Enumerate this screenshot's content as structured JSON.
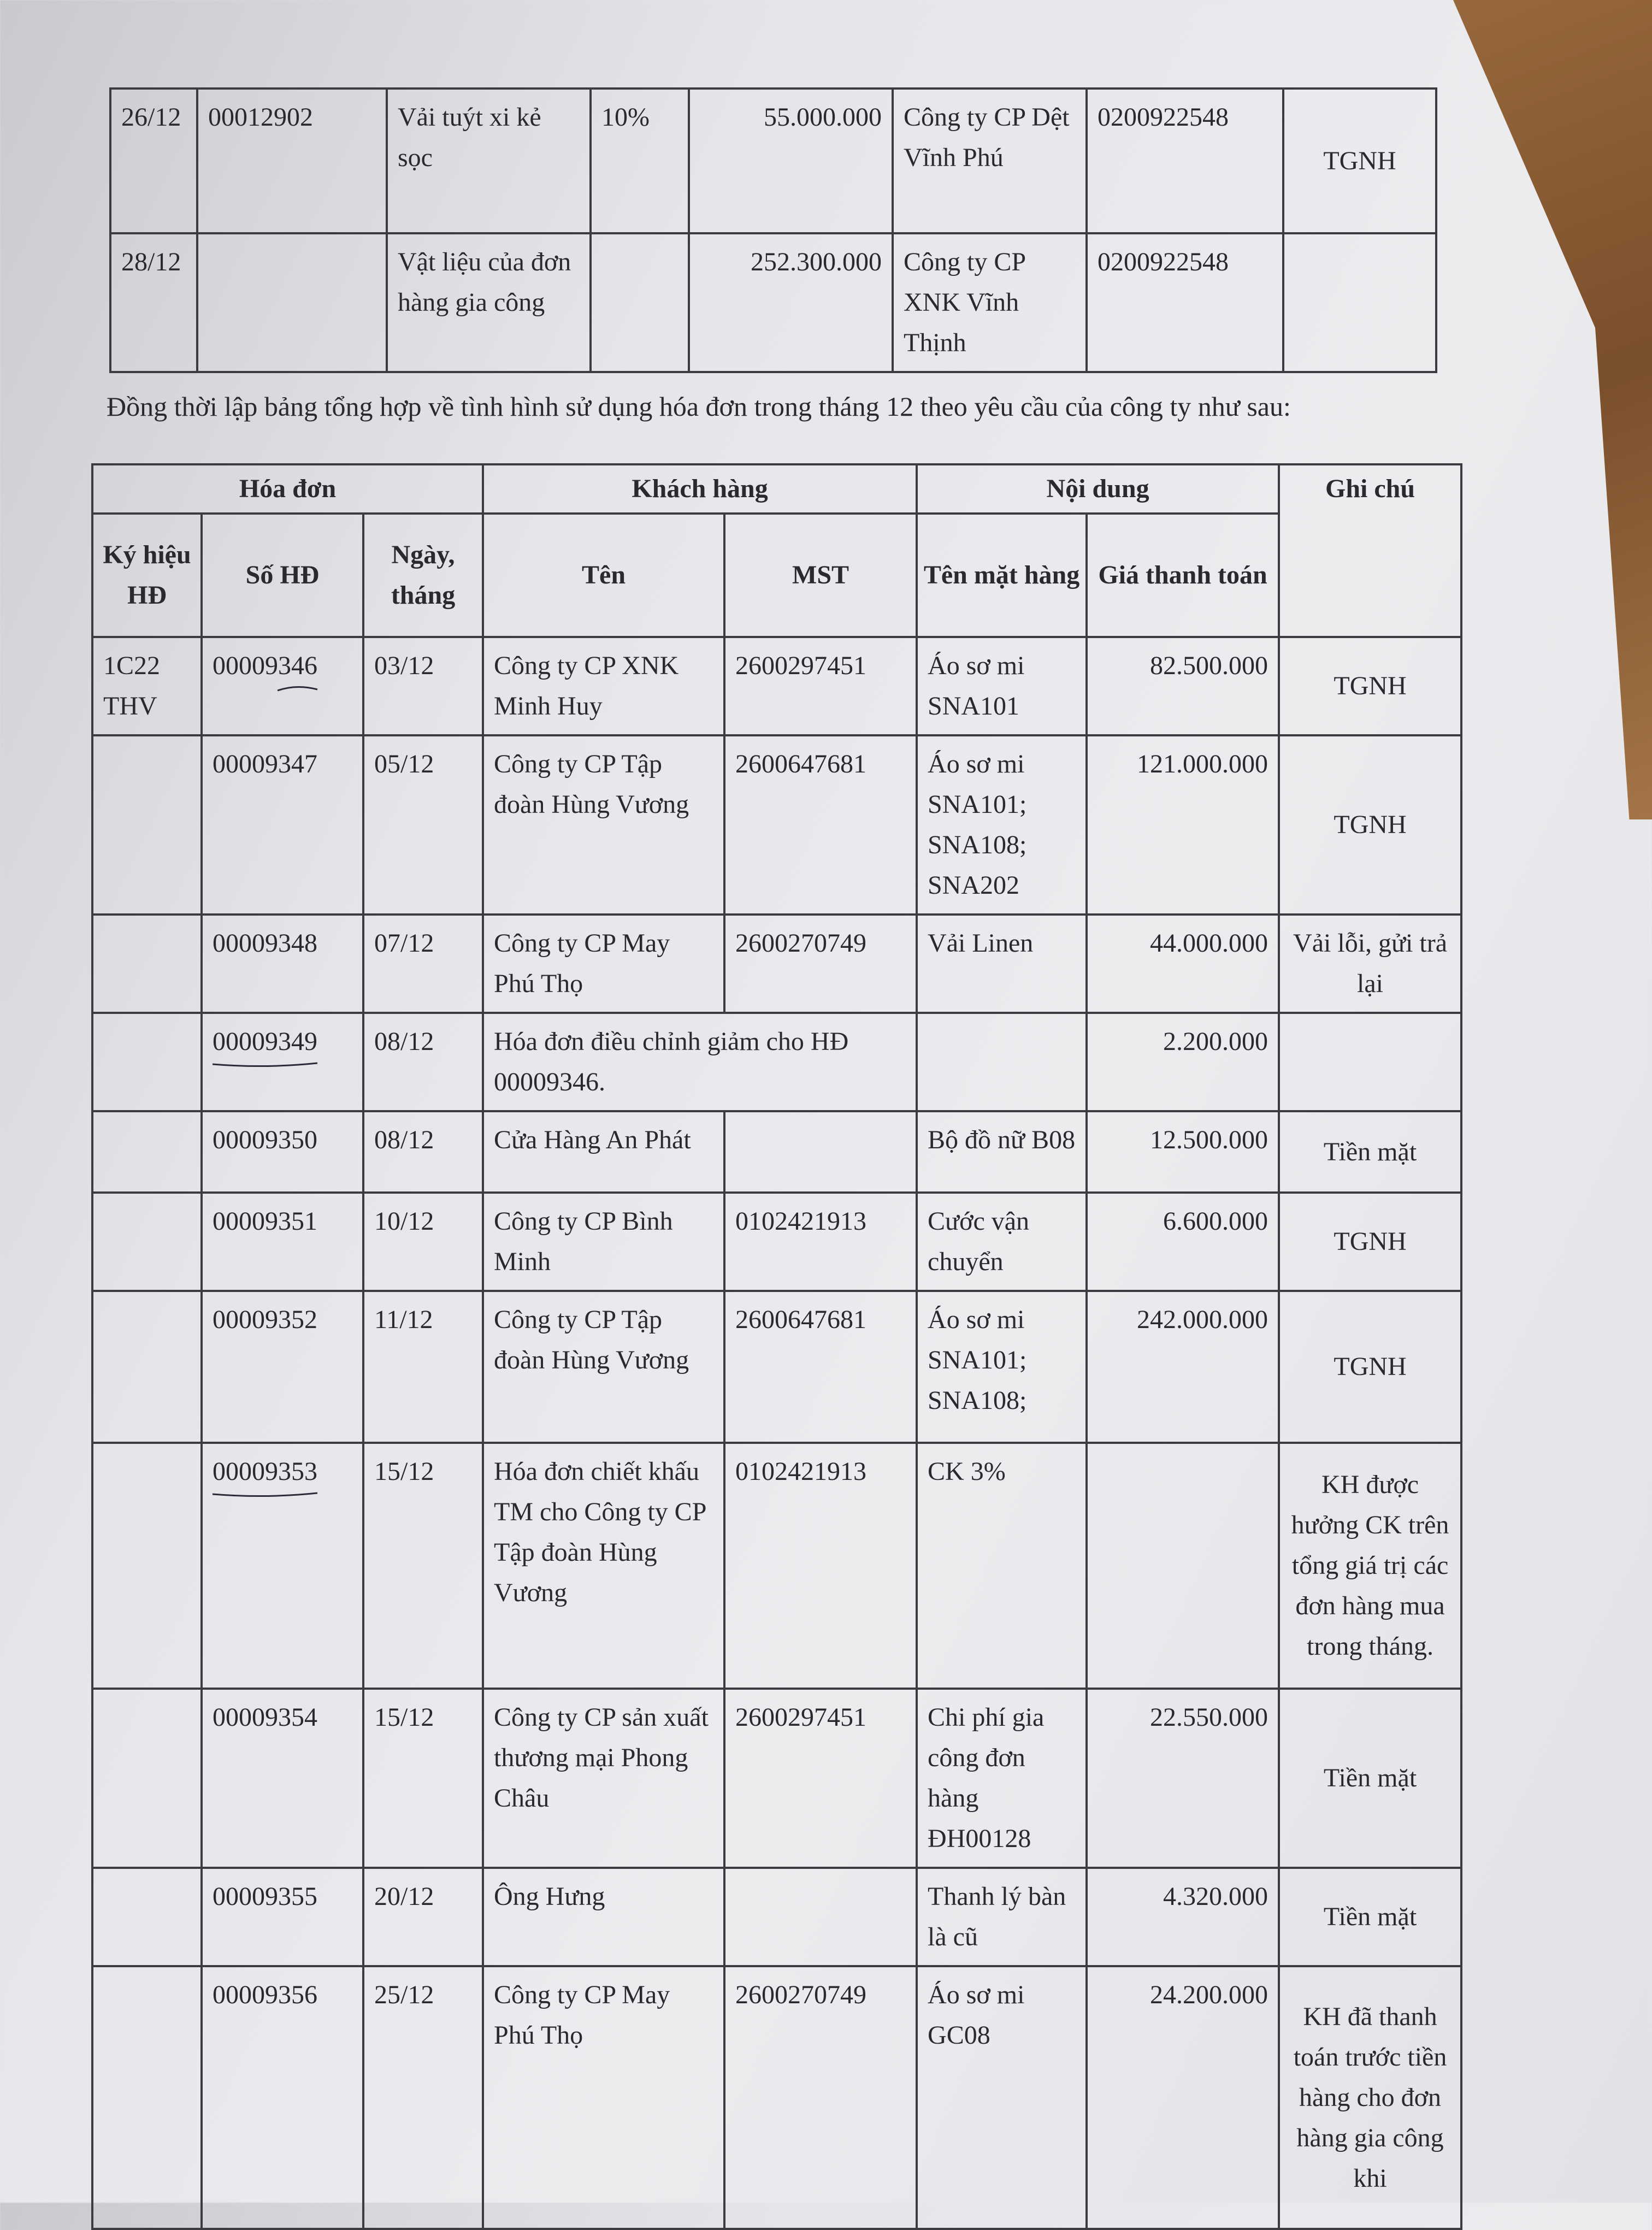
{
  "top_table": {
    "rows": [
      {
        "date": "26/12",
        "number": "00012902",
        "item": "Vải tuýt xi kẻ sọc",
        "vat": "10%",
        "amount": "55.000.000",
        "buyer": "Công ty CP Dệt Vĩnh Phú",
        "tax_code": "0200922548",
        "note": "TGNH"
      },
      {
        "date": "28/12",
        "number": "",
        "item": "Vật liệu của đơn hàng gia công",
        "vat": "",
        "amount": "252.300.000",
        "buyer": "Công ty CP XNK Vĩnh Thịnh",
        "tax_code": "0200922548",
        "note": ""
      }
    ]
  },
  "sentence": "Đồng thời lập bảng tổng hợp về tình hình sử dụng hóa đơn trong tháng 12 theo yêu cầu của công ty như sau:",
  "main_table": {
    "group_headers": [
      "Hóa đơn",
      "Khách hàng",
      "Nội dung",
      "Ghi chú"
    ],
    "headers": [
      "Ký hiệu HĐ",
      "Số HĐ",
      "Ngày, tháng",
      "Tên",
      "MST",
      "Tên mặt hàng",
      "Giá thanh toán"
    ],
    "rows": [
      {
        "symbol": "1C22 THV",
        "number": "00009346",
        "date": "03/12",
        "name": "Công ty CP XNK Minh Huy",
        "mst": "2600297451",
        "item": "Áo sơ mi SNA101",
        "price": "82.500.000",
        "note": "TGNH"
      },
      {
        "symbol": "",
        "number": "00009347",
        "date": "05/12",
        "name": "Công ty CP Tập đoàn Hùng Vương",
        "mst": "2600647681",
        "item": "Áo sơ mi SNA101; SNA108; SNA202",
        "price": "121.000.000",
        "note": "TGNH"
      },
      {
        "symbol": "",
        "number": "00009348",
        "date": "07/12",
        "name": "Công ty CP May Phú Thọ",
        "mst": "2600270749",
        "item": "Vải Linen",
        "price": "44.000.000",
        "note": "Vải lỗi, gửi trả lại"
      },
      {
        "symbol": "",
        "number": "00009349",
        "date": "08/12",
        "name": "Hóa đơn điều chỉnh giảm cho HĐ 00009346.",
        "mst": "",
        "item": "",
        "price": "2.200.000",
        "note": ""
      },
      {
        "symbol": "",
        "number": "00009350",
        "date": "08/12",
        "name": "Cửa Hàng An Phát",
        "mst": "",
        "item": "Bộ đồ nữ B08",
        "price": "12.500.000",
        "note": "Tiền mặt"
      },
      {
        "symbol": "",
        "number": "00009351",
        "date": "10/12",
        "name": "Công ty CP Bình Minh",
        "mst": "0102421913",
        "item": "Cước vận chuyển",
        "price": "6.600.000",
        "note": "TGNH"
      },
      {
        "symbol": "",
        "number": "00009352",
        "date": "11/12",
        "name": "Công ty CP Tập đoàn Hùng Vương",
        "mst": "2600647681",
        "item": "Áo sơ mi SNA101; SNA108;",
        "price": "242.000.000",
        "note": "TGNH"
      },
      {
        "symbol": "",
        "number": "00009353",
        "date": "15/12",
        "name": "Hóa đơn chiết khấu TM cho Công ty CP Tập đoàn Hùng Vương",
        "mst": "0102421913",
        "item": "CK 3%",
        "price": "",
        "note": "KH được hưởng CK trên tổng giá trị các đơn hàng mua trong tháng."
      },
      {
        "symbol": "",
        "number": "00009354",
        "date": "15/12",
        "name": "Công ty CP sản xuất thương mại Phong Châu",
        "mst": "2600297451",
        "item": "Chi phí gia công đơn hàng ĐH00128",
        "price": "22.550.000",
        "note": "Tiền mặt"
      },
      {
        "symbol": "",
        "number": "00009355",
        "date": "20/12",
        "name": "Ông Hưng",
        "mst": "",
        "item": "Thanh lý bàn là cũ",
        "price": "4.320.000",
        "note": "Tiền mặt"
      },
      {
        "symbol": "",
        "number": "00009356",
        "date": "25/12",
        "name": "Công ty CP May Phú Thọ",
        "mst": "2600270749",
        "item": "Áo sơ mi GC08",
        "price": "24.200.000",
        "note": "KH đã thanh toán trước tiền hàng cho đơn hàng gia công khi"
      }
    ],
    "underlined_numbers": [
      "00009346",
      "00009349",
      "00009353"
    ]
  }
}
